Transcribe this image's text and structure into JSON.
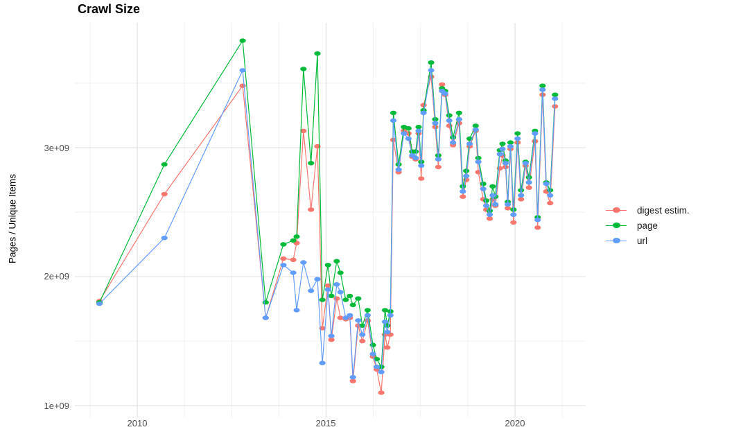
{
  "title": "Crawl Size",
  "y_axis_title": "Pages / Unique Items",
  "chart_data": {
    "type": "line",
    "title": "Crawl Size",
    "xlabel": "",
    "ylabel": "Pages / Unique Items",
    "unit": "billions (1e9) of pages / unique items per crawl",
    "x_unit": "crawl date (decimal year)",
    "xlim": [
      2008.35,
      2021.9
    ],
    "ylim_e9": [
      0.91,
      3.98
    ],
    "grid": true,
    "legend_position": "right",
    "background": "#ffffff",
    "grid_major_color": "#e3e3e3",
    "grid_minor_color": "#efefef",
    "x_major_ticks": {
      "values": [
        2010,
        2015,
        2020
      ],
      "labels": [
        "2010",
        "2015",
        "2020"
      ]
    },
    "y_major_ticks": {
      "values_e9": [
        1,
        2,
        3
      ],
      "labels": [
        "1e+09",
        "2e+09",
        "3e+09"
      ]
    },
    "x_minor_ticks": [
      2008.75,
      2011.25,
      2012.5,
      2013.75,
      2016.25,
      2017.5,
      2018.75,
      2021.25
    ],
    "y_minor_ticks_e9": [
      1.5,
      2.5,
      3.5
    ],
    "x": [
      2009.0,
      2010.72,
      2012.79,
      2013.4,
      2013.87,
      2014.13,
      2014.22,
      2014.4,
      2014.6,
      2014.77,
      2014.9,
      2015.05,
      2015.14,
      2015.28,
      2015.38,
      2015.52,
      2015.63,
      2015.71,
      2015.85,
      2015.96,
      2016.1,
      2016.24,
      2016.34,
      2016.46,
      2016.56,
      2016.62,
      2016.7,
      2016.78,
      2016.92,
      2017.06,
      2017.18,
      2017.28,
      2017.37,
      2017.45,
      2017.52,
      2017.58,
      2017.78,
      2017.89,
      2017.97,
      2018.07,
      2018.15,
      2018.26,
      2018.36,
      2018.52,
      2018.62,
      2018.71,
      2018.8,
      2018.96,
      2019.03,
      2019.16,
      2019.24,
      2019.33,
      2019.41,
      2019.48,
      2019.6,
      2019.67,
      2019.75,
      2019.81,
      2019.88,
      2019.96,
      2020.07,
      2020.16,
      2020.28,
      2020.37,
      2020.53,
      2020.6,
      2020.73,
      2020.83,
      2020.93,
      2021.06
    ],
    "series": [
      {
        "name": "digest estim.",
        "color": "#F8766D",
        "values_e9": [
          1.81,
          2.64,
          3.48,
          1.68,
          2.14,
          2.13,
          2.26,
          3.13,
          2.52,
          3.01,
          1.6,
          1.93,
          1.51,
          1.83,
          1.68,
          1.67,
          1.68,
          1.19,
          1.62,
          1.5,
          1.66,
          1.38,
          1.28,
          1.1,
          1.55,
          1.45,
          1.55,
          3.06,
          2.81,
          3.13,
          3.11,
          2.93,
          2.91,
          3.11,
          2.76,
          3.33,
          3.55,
          3.16,
          2.85,
          3.49,
          3.41,
          3.17,
          3.02,
          3.19,
          2.62,
          2.75,
          3.01,
          3.13,
          2.81,
          2.6,
          2.52,
          2.45,
          2.6,
          2.55,
          2.84,
          2.94,
          2.85,
          2.53,
          2.99,
          2.42,
          3.04,
          2.6,
          2.86,
          2.69,
          3.05,
          2.38,
          3.41,
          2.66,
          2.57,
          3.32
        ]
      },
      {
        "name": "page",
        "color": "#00BA38",
        "values_e9": [
          1.8,
          2.87,
          3.83,
          1.8,
          2.25,
          2.28,
          2.31,
          3.61,
          2.88,
          3.73,
          1.82,
          2.09,
          1.85,
          2.12,
          2.03,
          1.82,
          1.85,
          1.78,
          1.83,
          1.62,
          1.74,
          1.47,
          1.36,
          1.3,
          1.74,
          1.62,
          1.73,
          3.27,
          2.87,
          3.16,
          3.15,
          2.97,
          2.97,
          3.16,
          2.89,
          3.29,
          3.66,
          3.22,
          2.94,
          3.46,
          3.44,
          3.25,
          3.08,
          3.27,
          2.7,
          2.82,
          3.07,
          3.17,
          2.92,
          2.72,
          2.59,
          2.51,
          2.7,
          2.62,
          2.98,
          3.03,
          2.9,
          2.58,
          3.04,
          2.52,
          3.11,
          2.67,
          2.89,
          2.77,
          3.13,
          2.46,
          3.48,
          2.73,
          2.67,
          3.41
        ]
      },
      {
        "name": "url",
        "color": "#619CFF",
        "values_e9": [
          1.79,
          2.3,
          3.6,
          1.68,
          2.09,
          2.03,
          1.74,
          2.11,
          1.89,
          1.98,
          1.33,
          1.9,
          1.54,
          1.94,
          1.88,
          1.68,
          1.7,
          1.22,
          1.66,
          1.55,
          1.7,
          1.4,
          1.3,
          1.26,
          1.65,
          1.57,
          1.7,
          3.21,
          2.83,
          3.11,
          3.07,
          2.94,
          2.92,
          3.13,
          2.86,
          3.27,
          3.6,
          3.19,
          2.91,
          3.44,
          3.42,
          3.21,
          3.04,
          3.22,
          2.66,
          2.78,
          3.03,
          3.14,
          2.89,
          2.68,
          2.55,
          2.48,
          2.63,
          2.56,
          2.95,
          2.99,
          2.88,
          2.56,
          3.01,
          2.48,
          3.07,
          2.63,
          2.88,
          2.73,
          3.11,
          2.44,
          3.45,
          2.72,
          2.63,
          3.38
        ]
      }
    ]
  }
}
